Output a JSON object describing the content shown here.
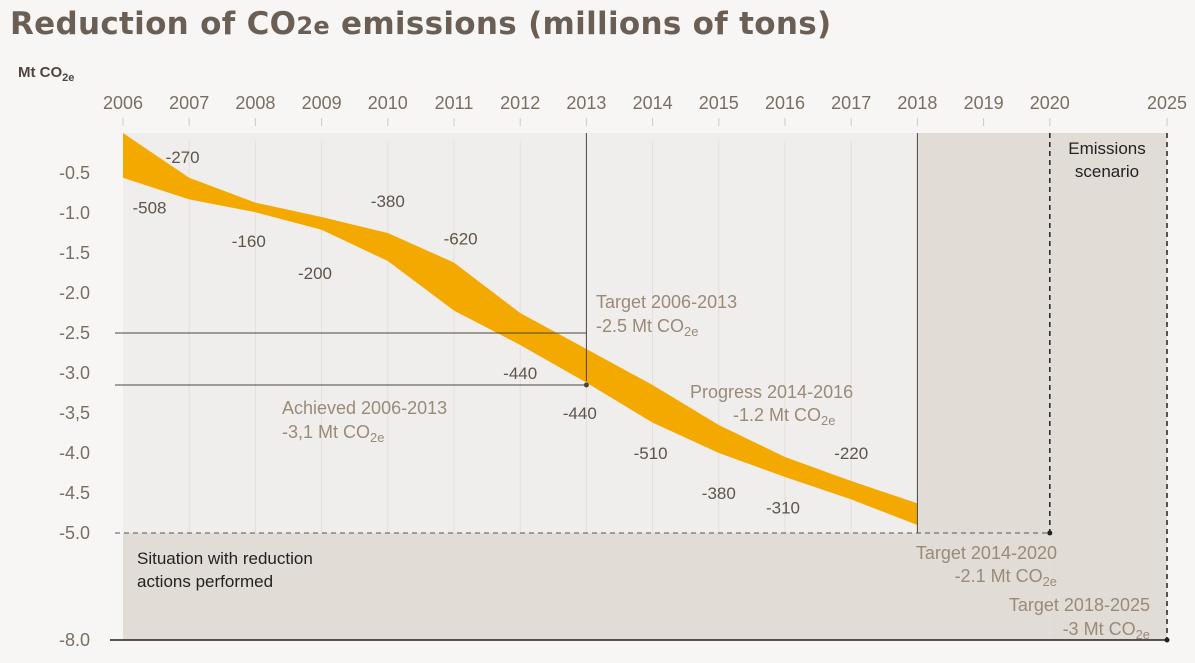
{
  "title": "Reduction of CO2e emissions (millions of tons)",
  "unit_label": "Mt CO2e",
  "chart_data": {
    "type": "area",
    "title": "Reduction of CO2e emissions (millions of tons)",
    "ylabel": "Mt CO2e",
    "x_ticks": [
      "2006",
      "2007",
      "2008",
      "2009",
      "2010",
      "2011",
      "2012",
      "2013",
      "2014",
      "2015",
      "2016",
      "2017",
      "2018",
      "2019",
      "2020",
      "2025"
    ],
    "y_ticks": [
      "-0.5",
      "-1.0",
      "-1.5",
      "-2.0",
      "-2.5",
      "-3.0",
      "-3,5",
      "-4.0",
      "-4.5",
      "-5.0",
      "-8.0"
    ],
    "ylim": [
      -8.0,
      0
    ],
    "band": {
      "x": [
        2006,
        2007,
        2008,
        2009,
        2010,
        2011,
        2012,
        2013,
        2014,
        2015,
        2016,
        2017,
        2018
      ],
      "upper": [
        0.0,
        -0.56,
        -0.87,
        -1.05,
        -1.25,
        -1.62,
        -2.25,
        -2.7,
        -3.15,
        -3.65,
        -4.05,
        -4.35,
        -4.63
      ],
      "lower": [
        -0.56,
        -0.83,
        -0.99,
        -1.21,
        -1.6,
        -2.22,
        -2.65,
        -3.12,
        -3.62,
        -4.0,
        -4.3,
        -4.58,
        -4.9
      ]
    },
    "value_labels": [
      {
        "text": "-270",
        "x": 2006.9,
        "y": -0.3
      },
      {
        "text": "-508",
        "x": 2006.4,
        "y": -0.93
      },
      {
        "text": "-160",
        "x": 2007.9,
        "y": -1.35
      },
      {
        "text": "-200",
        "x": 2008.9,
        "y": -1.75
      },
      {
        "text": "-380",
        "x": 2010.0,
        "y": -0.85
      },
      {
        "text": "-620",
        "x": 2011.1,
        "y": -1.32
      },
      {
        "text": "-440",
        "x": 2012.0,
        "y": -3.0
      },
      {
        "text": "-440",
        "x": 2012.9,
        "y": -3.5
      },
      {
        "text": "-510",
        "x": 2013.97,
        "y": -4.0
      },
      {
        "text": "-380",
        "x": 2015.0,
        "y": -4.5
      },
      {
        "text": "-310",
        "x": 2015.97,
        "y": -4.68
      },
      {
        "text": "-220",
        "x": 2017.0,
        "y": -4.0
      }
    ],
    "annotations": {
      "target_2013": {
        "line1": "Target 2006-2013",
        "line2": "-2.5 Mt CO2e",
        "value": -2.5
      },
      "achieved_2013": {
        "line1": "Achieved 2006-2013",
        "line2": "-3,1 Mt CO2e",
        "value": -3.1
      },
      "progress": {
        "line1": "Progress 2014-2016",
        "line2": "-1.2 Mt CO2e"
      },
      "target_2020": {
        "line1": "Target  2014-2020",
        "line2": "-2.1 Mt CO2e",
        "value": -5.0
      },
      "target_2025": {
        "line1": "Target  2018-2025",
        "line2": "-3 Mt CO2e",
        "value": -8.0
      },
      "scenario": {
        "line1": "Emissions",
        "line2": "scenario"
      },
      "situation": {
        "line1": "Situation with reduction",
        "line2": "actions performed"
      }
    },
    "colors": {
      "band": "#f4a900",
      "background": "#f7f6f5",
      "plot_bg": "#f0eeec",
      "shade": "#e2dcd7",
      "text": "#6a6057",
      "annot": "#9a8a78"
    }
  }
}
